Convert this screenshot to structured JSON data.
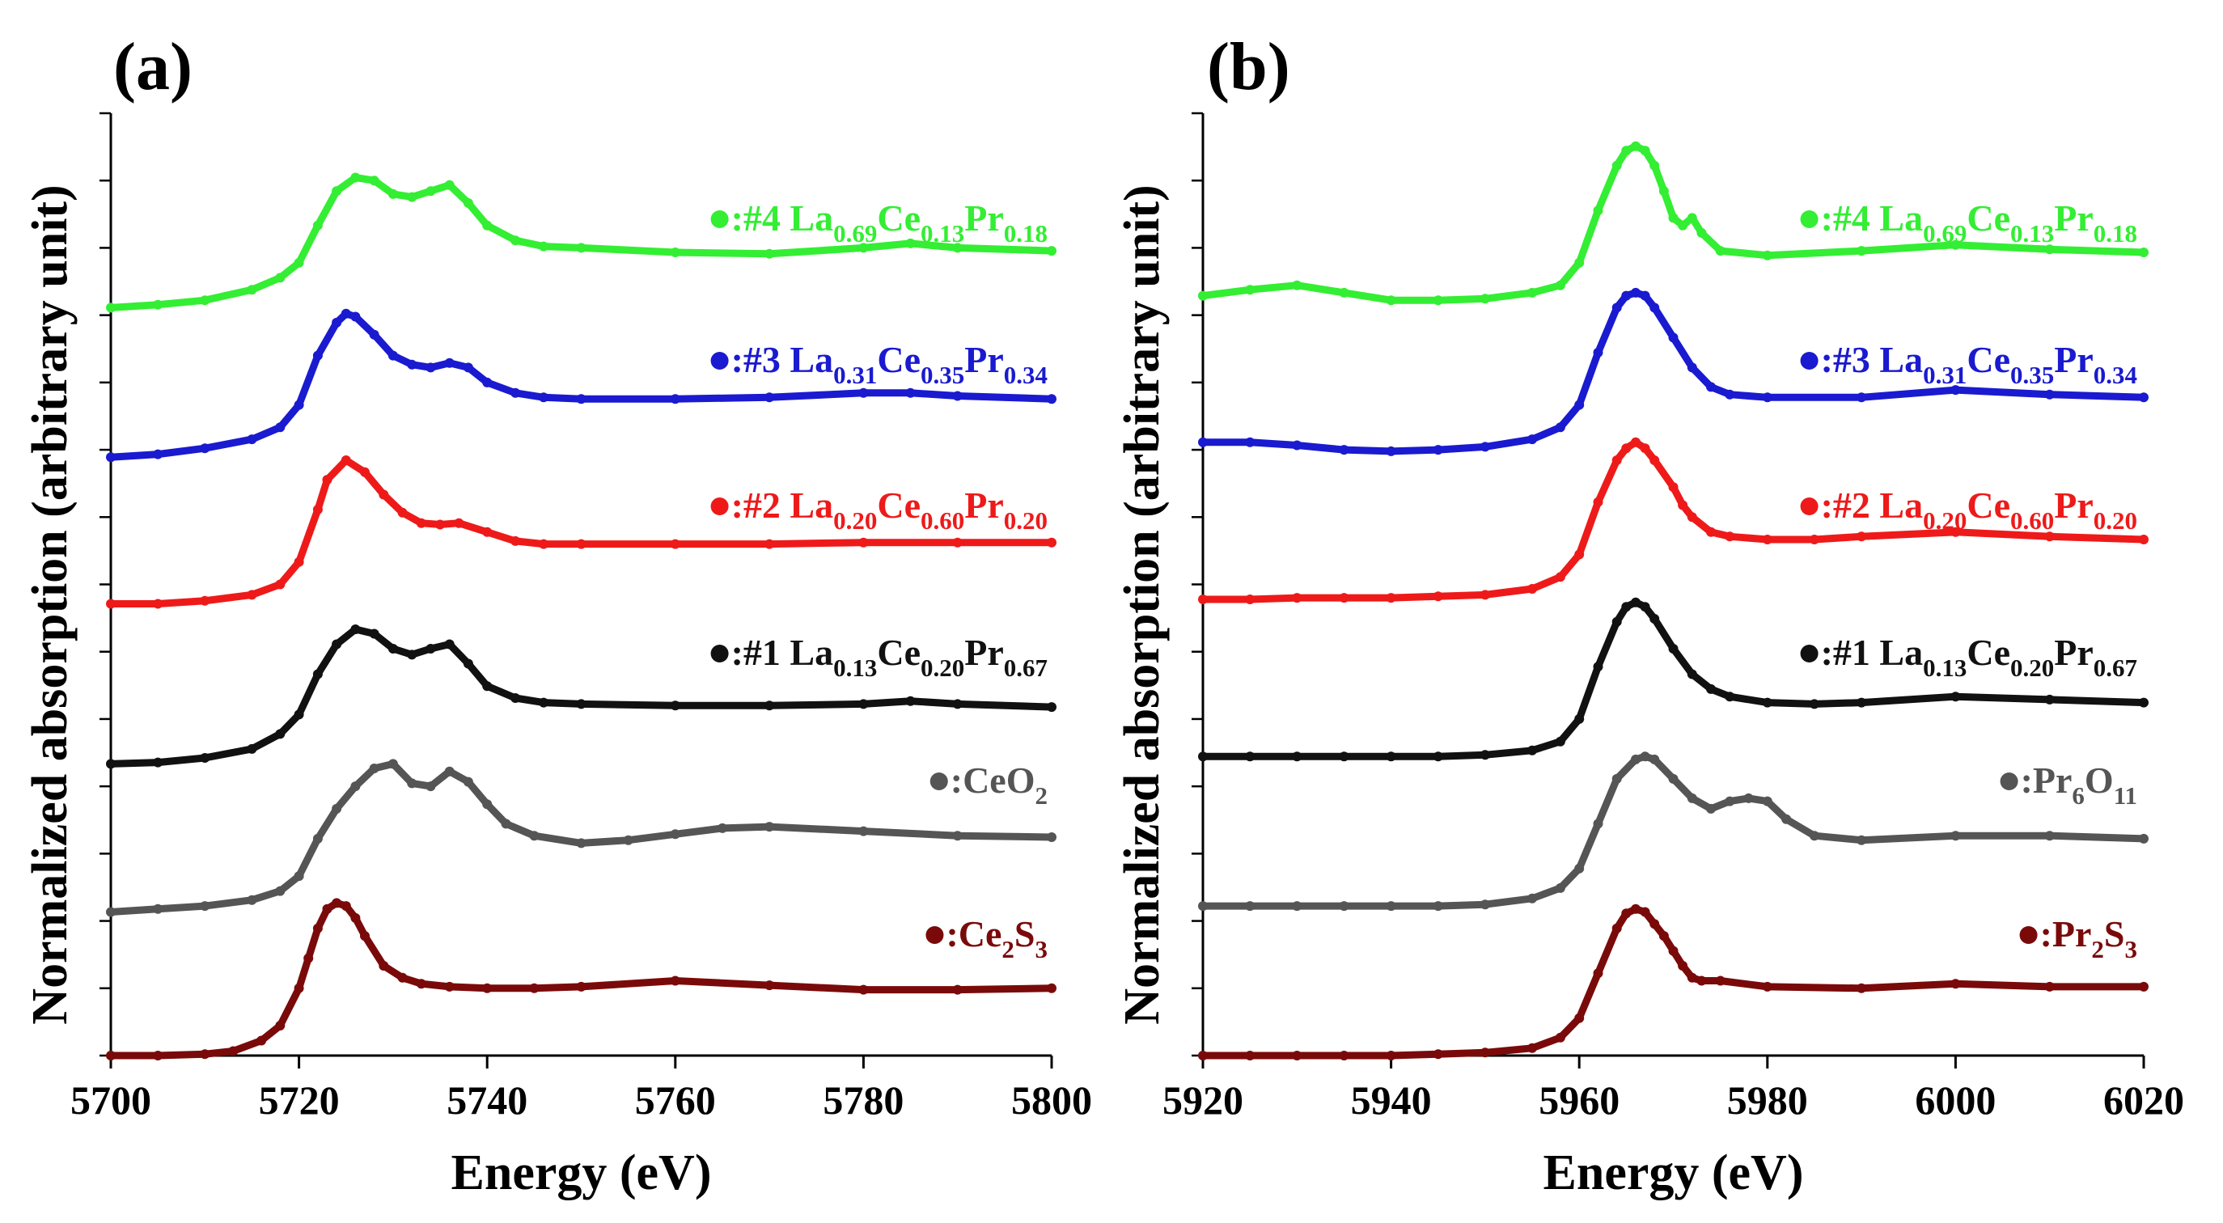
{
  "chart_data": [
    {
      "type": "line",
      "panel_label": "(a)",
      "xlabel": "Energy (eV)",
      "ylabel": "Normalized absorption (arbitrary unit)",
      "xlim": [
        5700,
        5800
      ],
      "x_ticks": [
        "5700",
        "5720",
        "5740",
        "5760",
        "5780",
        "5800"
      ],
      "ylim": [
        0,
        6.3
      ],
      "grid": false,
      "legend_placement": "right of each curve",
      "series": [
        {
          "id": "s4",
          "name": "#4 La0.69Ce0.13Pr0.18",
          "color": "#33ee33",
          "legend": {
            "prefix": ":#4 ",
            "parts": [
              [
                "La",
                "0.69"
              ],
              [
                "Ce",
                "0.13"
              ],
              [
                "Pr",
                "0.18"
              ]
            ]
          },
          "x": [
            5700,
            5705,
            5710,
            5715,
            5718,
            5720,
            5722,
            5724,
            5726,
            5728,
            5730,
            5732,
            5734,
            5736,
            5738,
            5740,
            5743,
            5746,
            5750,
            5760,
            5770,
            5780,
            5785,
            5790,
            5800
          ],
          "y": [
            5.0,
            5.02,
            5.05,
            5.12,
            5.2,
            5.3,
            5.55,
            5.78,
            5.87,
            5.85,
            5.76,
            5.74,
            5.78,
            5.82,
            5.7,
            5.55,
            5.45,
            5.41,
            5.4,
            5.37,
            5.36,
            5.4,
            5.43,
            5.4,
            5.38
          ]
        },
        {
          "id": "s3",
          "name": "#3 La0.31Ce0.35Pr0.34",
          "color": "#1a1ad0",
          "legend": {
            "prefix": ":#3 ",
            "parts": [
              [
                "La",
                "0.31"
              ],
              [
                "Ce",
                "0.35"
              ],
              [
                "Pr",
                "0.34"
              ]
            ]
          },
          "x": [
            5700,
            5705,
            5710,
            5715,
            5718,
            5720,
            5722,
            5724,
            5725,
            5726,
            5728,
            5730,
            5732,
            5734,
            5736,
            5738,
            5740,
            5743,
            5746,
            5750,
            5760,
            5770,
            5780,
            5785,
            5790,
            5800
          ],
          "y": [
            4.0,
            4.02,
            4.06,
            4.12,
            4.2,
            4.35,
            4.68,
            4.9,
            4.96,
            4.94,
            4.82,
            4.68,
            4.62,
            4.6,
            4.63,
            4.6,
            4.5,
            4.43,
            4.4,
            4.39,
            4.39,
            4.4,
            4.43,
            4.43,
            4.41,
            4.39
          ]
        },
        {
          "id": "s2",
          "name": "#2 La0.20Ce0.60Pr0.20",
          "color": "#ee1a1a",
          "legend": {
            "prefix": ":#2 ",
            "parts": [
              [
                "La",
                "0.20"
              ],
              [
                "Ce",
                "0.60"
              ],
              [
                "Pr",
                "0.20"
              ]
            ]
          },
          "x": [
            5700,
            5705,
            5710,
            5715,
            5718,
            5720,
            5722,
            5723,
            5725,
            5727,
            5729,
            5731,
            5733,
            5735,
            5737,
            5740,
            5743,
            5746,
            5750,
            5760,
            5770,
            5780,
            5790,
            5800
          ],
          "y": [
            3.02,
            3.02,
            3.04,
            3.08,
            3.15,
            3.3,
            3.65,
            3.85,
            3.98,
            3.9,
            3.75,
            3.63,
            3.56,
            3.55,
            3.56,
            3.5,
            3.44,
            3.42,
            3.42,
            3.42,
            3.42,
            3.43,
            3.43,
            3.43
          ]
        },
        {
          "id": "s1",
          "name": "#1 La0.13Ce0.20Pr0.67",
          "color": "#111111",
          "legend": {
            "prefix": ":#1 ",
            "parts": [
              [
                "La",
                "0.13"
              ],
              [
                "Ce",
                "0.20"
              ],
              [
                "Pr",
                "0.67"
              ]
            ]
          },
          "x": [
            5700,
            5705,
            5710,
            5715,
            5718,
            5720,
            5722,
            5724,
            5726,
            5728,
            5730,
            5732,
            5734,
            5736,
            5738,
            5740,
            5743,
            5746,
            5750,
            5760,
            5770,
            5780,
            5785,
            5790,
            5800
          ],
          "y": [
            1.95,
            1.96,
            1.99,
            2.05,
            2.15,
            2.28,
            2.55,
            2.75,
            2.85,
            2.82,
            2.72,
            2.68,
            2.72,
            2.75,
            2.62,
            2.47,
            2.39,
            2.36,
            2.35,
            2.34,
            2.34,
            2.35,
            2.37,
            2.35,
            2.33
          ]
        },
        {
          "id": "ref1",
          "name": "CeO2",
          "color": "#555555",
          "legend": {
            "prefix": ":",
            "parts": [
              [
                "CeO",
                "2"
              ]
            ]
          },
          "x": [
            5700,
            5705,
            5710,
            5715,
            5718,
            5720,
            5722,
            5724,
            5726,
            5728,
            5730,
            5732,
            5734,
            5736,
            5738,
            5740,
            5742,
            5745,
            5750,
            5755,
            5760,
            5765,
            5770,
            5780,
            5790,
            5800
          ],
          "y": [
            0.96,
            0.98,
            1.0,
            1.04,
            1.1,
            1.2,
            1.45,
            1.65,
            1.8,
            1.92,
            1.95,
            1.82,
            1.8,
            1.9,
            1.83,
            1.68,
            1.55,
            1.47,
            1.42,
            1.44,
            1.48,
            1.52,
            1.53,
            1.5,
            1.47,
            1.46
          ]
        },
        {
          "id": "ref2",
          "name": "Ce2S3",
          "color": "#7a0a0a",
          "legend": {
            "prefix": ":",
            "parts": [
              [
                "Ce",
                "2"
              ],
              [
                "S",
                "3"
              ]
            ]
          },
          "x": [
            5700,
            5705,
            5710,
            5713,
            5716,
            5718,
            5720,
            5721,
            5722,
            5723,
            5724,
            5725,
            5726,
            5727,
            5729,
            5731,
            5733,
            5736,
            5740,
            5745,
            5750,
            5760,
            5770,
            5780,
            5790,
            5800
          ],
          "y": [
            0.0,
            0.0,
            0.01,
            0.03,
            0.1,
            0.2,
            0.45,
            0.65,
            0.85,
            0.98,
            1.02,
            1.0,
            0.92,
            0.8,
            0.6,
            0.52,
            0.48,
            0.46,
            0.45,
            0.45,
            0.46,
            0.5,
            0.47,
            0.44,
            0.44,
            0.45
          ]
        }
      ]
    },
    {
      "type": "line",
      "panel_label": "(b)",
      "xlabel": "Energy (eV)",
      "ylabel": "Normalized absorption (arbitrary unit)",
      "xlim": [
        5920,
        6020
      ],
      "x_ticks": [
        "5920",
        "5940",
        "5960",
        "5980",
        "6000",
        "6020"
      ],
      "ylim": [
        0,
        6.3
      ],
      "grid": false,
      "legend_placement": "right of each curve",
      "series": [
        {
          "id": "s4",
          "name": "#4 La0.69Ce0.13Pr0.18",
          "color": "#33ee33",
          "legend": {
            "prefix": ":#4 ",
            "parts": [
              [
                "La",
                "0.69"
              ],
              [
                "Ce",
                "0.13"
              ],
              [
                "Pr",
                "0.18"
              ]
            ]
          },
          "x": [
            5920,
            5925,
            5930,
            5935,
            5940,
            5945,
            5950,
            5955,
            5958,
            5960,
            5962,
            5964,
            5965,
            5966,
            5967,
            5968,
            5969,
            5970,
            5971,
            5972,
            5973,
            5975,
            5980,
            5990,
            6000,
            6010,
            6020
          ],
          "y": [
            5.08,
            5.12,
            5.15,
            5.1,
            5.05,
            5.05,
            5.06,
            5.1,
            5.15,
            5.3,
            5.65,
            5.95,
            6.05,
            6.08,
            6.05,
            5.95,
            5.78,
            5.6,
            5.55,
            5.6,
            5.5,
            5.38,
            5.35,
            5.38,
            5.42,
            5.39,
            5.37
          ]
        },
        {
          "id": "s3",
          "name": "#3 La0.31Ce0.35Pr0.34",
          "color": "#1a1ad0",
          "legend": {
            "prefix": ":#3 ",
            "parts": [
              [
                "La",
                "0.31"
              ],
              [
                "Ce",
                "0.35"
              ],
              [
                "Pr",
                "0.34"
              ]
            ]
          },
          "x": [
            5920,
            5925,
            5930,
            5935,
            5940,
            5945,
            5950,
            5955,
            5958,
            5960,
            5962,
            5964,
            5965,
            5966,
            5967,
            5968,
            5970,
            5972,
            5974,
            5976,
            5980,
            5990,
            6000,
            6010,
            6020
          ],
          "y": [
            4.1,
            4.1,
            4.08,
            4.05,
            4.04,
            4.05,
            4.07,
            4.12,
            4.2,
            4.35,
            4.7,
            5.0,
            5.08,
            5.1,
            5.08,
            5.0,
            4.8,
            4.6,
            4.47,
            4.42,
            4.4,
            4.4,
            4.45,
            4.42,
            4.4
          ]
        },
        {
          "id": "s2",
          "name": "#2 La0.20Ce0.60Pr0.20",
          "color": "#ee1a1a",
          "legend": {
            "prefix": ":#2 ",
            "parts": [
              [
                "La",
                "0.20"
              ],
              [
                "Ce",
                "0.60"
              ],
              [
                "Pr",
                "0.20"
              ]
            ]
          },
          "x": [
            5920,
            5925,
            5930,
            5935,
            5940,
            5945,
            5950,
            5955,
            5958,
            5960,
            5962,
            5964,
            5965,
            5966,
            5967,
            5968,
            5970,
            5971,
            5972,
            5974,
            5976,
            5980,
            5985,
            5990,
            6000,
            6010,
            6020
          ],
          "y": [
            3.05,
            3.05,
            3.06,
            3.06,
            3.06,
            3.07,
            3.08,
            3.12,
            3.2,
            3.35,
            3.7,
            3.98,
            4.06,
            4.1,
            4.06,
            3.98,
            3.8,
            3.68,
            3.6,
            3.5,
            3.47,
            3.45,
            3.45,
            3.47,
            3.5,
            3.47,
            3.45
          ]
        },
        {
          "id": "s1",
          "name": "#1 La0.13Ce0.20Pr0.67",
          "color": "#111111",
          "legend": {
            "prefix": ":#1 ",
            "parts": [
              [
                "La",
                "0.13"
              ],
              [
                "Ce",
                "0.20"
              ],
              [
                "Pr",
                "0.67"
              ]
            ]
          },
          "x": [
            5920,
            5925,
            5930,
            5935,
            5940,
            5945,
            5950,
            5955,
            5958,
            5960,
            5962,
            5964,
            5965,
            5966,
            5967,
            5968,
            5970,
            5972,
            5974,
            5976,
            5980,
            5985,
            5990,
            6000,
            6010,
            6020
          ],
          "y": [
            2.0,
            2.0,
            2.0,
            2.0,
            2.0,
            2.0,
            2.01,
            2.04,
            2.1,
            2.25,
            2.6,
            2.9,
            3.0,
            3.03,
            3.0,
            2.92,
            2.72,
            2.55,
            2.45,
            2.4,
            2.36,
            2.35,
            2.36,
            2.4,
            2.38,
            2.36
          ]
        },
        {
          "id": "ref1",
          "name": "Pr6O11",
          "color": "#555555",
          "legend": {
            "prefix": ":",
            "parts": [
              [
                "Pr",
                "6"
              ],
              [
                "O",
                "11"
              ]
            ]
          },
          "x": [
            5920,
            5925,
            5930,
            5935,
            5940,
            5945,
            5950,
            5955,
            5958,
            5960,
            5962,
            5964,
            5966,
            5967,
            5968,
            5970,
            5972,
            5974,
            5976,
            5978,
            5980,
            5982,
            5985,
            5990,
            6000,
            6010,
            6020
          ],
          "y": [
            1.0,
            1.0,
            1.0,
            1.0,
            1.0,
            1.0,
            1.01,
            1.05,
            1.12,
            1.25,
            1.55,
            1.85,
            1.98,
            2.0,
            1.98,
            1.85,
            1.72,
            1.65,
            1.7,
            1.72,
            1.7,
            1.58,
            1.47,
            1.44,
            1.47,
            1.47,
            1.45
          ]
        },
        {
          "id": "ref2",
          "name": "Pr2S3",
          "color": "#7a0a0a",
          "legend": {
            "prefix": ":",
            "parts": [
              [
                "Pr",
                "2"
              ],
              [
                "S",
                "3"
              ]
            ]
          },
          "x": [
            5920,
            5925,
            5930,
            5935,
            5940,
            5945,
            5950,
            5955,
            5958,
            5960,
            5962,
            5964,
            5965,
            5966,
            5967,
            5968,
            5969,
            5970,
            5971,
            5972,
            5973,
            5975,
            5980,
            5990,
            6000,
            6010,
            6020
          ],
          "y": [
            0.0,
            0.0,
            0.0,
            0.0,
            0.0,
            0.01,
            0.02,
            0.05,
            0.12,
            0.25,
            0.55,
            0.85,
            0.95,
            0.98,
            0.96,
            0.88,
            0.8,
            0.7,
            0.6,
            0.52,
            0.5,
            0.5,
            0.46,
            0.45,
            0.48,
            0.46,
            0.46
          ]
        }
      ]
    }
  ]
}
